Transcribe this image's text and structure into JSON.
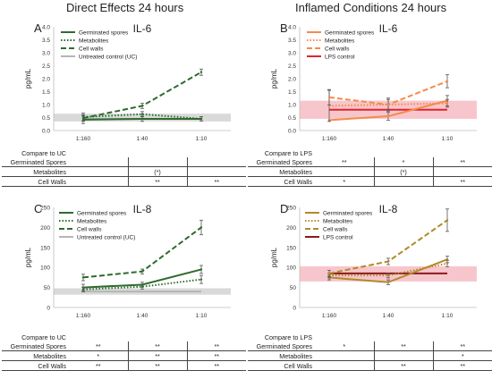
{
  "headings": {
    "left": "Direct Effects 24 hours",
    "right": "Inflamed Conditions 24 hours"
  },
  "chart_data": [
    {
      "letter": "A",
      "title": "IL-6",
      "type": "line",
      "ylabel": "pg/mL",
      "x": [
        "1:160",
        "1:40",
        "1:10"
      ],
      "ylim": [
        0,
        4.0
      ],
      "yticks": [
        "0.0",
        "0.5",
        "1.0",
        "1.5",
        "2.0",
        "2.5",
        "3.0",
        "3.5",
        "4.0"
      ],
      "band": {
        "name": "Untreated control (UC)",
        "low": 0.35,
        "high": 0.65,
        "line": 0.45,
        "color": "#d9d9d9",
        "lineColor": "#b5b5b5"
      },
      "series": [
        {
          "name": "Germinated spores",
          "values": [
            0.42,
            0.45,
            0.45
          ],
          "err": [
            0.15,
            0.1,
            0.08
          ],
          "color": "#2e6b2e",
          "dash": "solid"
        },
        {
          "name": "Metabolites",
          "values": [
            0.52,
            0.63,
            0.45
          ],
          "err": [
            0.15,
            0.1,
            0.08
          ],
          "color": "#2e6b2e",
          "dash": "dot"
        },
        {
          "name": "Cell walls",
          "values": [
            0.48,
            0.95,
            2.25
          ],
          "err": [
            0.12,
            0.1,
            0.12
          ],
          "color": "#2e6b2e",
          "dash": "dash"
        }
      ],
      "legend": [
        "Germinated spores",
        "Metabolites",
        "Cell walls",
        "Untreated control (UC)"
      ],
      "table": {
        "header": "Compare to UC",
        "rows": [
          {
            "label": "Germinated Spores",
            "cells": [
              "",
              "",
              ""
            ]
          },
          {
            "label": "Metabolites",
            "cells": [
              "",
              "(*)",
              ""
            ]
          },
          {
            "label": "Cell Walls",
            "cells": [
              "",
              "**",
              "**"
            ]
          }
        ]
      }
    },
    {
      "letter": "B",
      "title": "IL-6",
      "type": "line",
      "ylabel": "pg/mL",
      "x": [
        "1:160",
        "1:40",
        "1:10"
      ],
      "ylim": [
        0,
        4.0
      ],
      "yticks": [
        "0.0",
        "0.5",
        "1.0",
        "1.5",
        "2.0",
        "2.5",
        "3.0",
        "3.5",
        "4.0"
      ],
      "band": {
        "name": "LPS control",
        "low": 0.45,
        "high": 1.15,
        "line": 0.8,
        "color": "#f7c6cc",
        "lineColor": "#e0242b"
      },
      "series": [
        {
          "name": "Germinated spores",
          "values": [
            0.4,
            0.55,
            1.15
          ],
          "err": [
            0.0,
            0.15,
            0.2
          ],
          "color": "#f58a4b",
          "dash": "solid"
        },
        {
          "name": "Metabolites",
          "values": [
            0.95,
            1.0,
            1.05
          ],
          "err": [
            0.6,
            0.25,
            0.15
          ],
          "color": "#f58a4b",
          "dash": "dot"
        },
        {
          "name": "Cell walls",
          "values": [
            1.28,
            1.0,
            1.9
          ],
          "err": [
            0.3,
            0.2,
            0.25
          ],
          "color": "#f58a4b",
          "dash": "dash"
        }
      ],
      "legend": [
        "Germinated spores",
        "Metabolites",
        "Cell walls",
        "LPS control"
      ],
      "table": {
        "header": "Compare to LPS",
        "rows": [
          {
            "label": "Germinated Spores",
            "cells": [
              "**",
              "*",
              "**"
            ]
          },
          {
            "label": "Metabolites",
            "cells": [
              "",
              "(*)",
              ""
            ]
          },
          {
            "label": "Cell Walls",
            "cells": [
              "*",
              "",
              "**"
            ]
          }
        ]
      }
    },
    {
      "letter": "C",
      "title": "IL-8",
      "type": "line",
      "ylabel": "pg/mL",
      "x": [
        "1:160",
        "1:40",
        "1:10"
      ],
      "ylim": [
        0,
        250
      ],
      "yticks": [
        "0",
        "50",
        "100",
        "150",
        "200",
        "250"
      ],
      "band": {
        "name": "Untreated control (UC)",
        "low": 32,
        "high": 48,
        "line": 40,
        "color": "#d9d9d9",
        "lineColor": "#b5b5b5"
      },
      "series": [
        {
          "name": "Germinated spores",
          "values": [
            50,
            57,
            95
          ],
          "err": [
            8,
            6,
            10
          ],
          "color": "#2e6b2e",
          "dash": "solid"
        },
        {
          "name": "Metabolites",
          "values": [
            45,
            52,
            70
          ],
          "err": [
            6,
            6,
            10
          ],
          "color": "#2e6b2e",
          "dash": "dot"
        },
        {
          "name": "Cell walls",
          "values": [
            75,
            90,
            200
          ],
          "err": [
            8,
            6,
            18
          ],
          "color": "#2e6b2e",
          "dash": "dash"
        }
      ],
      "legend": [
        "Germinated spores",
        "Metabolites",
        "Cell walls",
        "Untreated control (UC)"
      ],
      "table": {
        "header": "Compare to UC",
        "rows": [
          {
            "label": "Germinated Spores",
            "cells": [
              "**",
              "**",
              "**"
            ]
          },
          {
            "label": "Metabolites",
            "cells": [
              "*",
              "**",
              "**"
            ]
          },
          {
            "label": "Cell Walls",
            "cells": [
              "**",
              "**",
              "**"
            ]
          }
        ]
      }
    },
    {
      "letter": "D",
      "title": "IL-8",
      "type": "line",
      "ylabel": "pg/mL",
      "x": [
        "1:160",
        "1:40",
        "1:10"
      ],
      "ylim": [
        0,
        250
      ],
      "yticks": [
        "0",
        "50",
        "100",
        "150",
        "200",
        "250"
      ],
      "band": {
        "name": "LPS control",
        "low": 65,
        "high": 103,
        "line": 85,
        "color": "#f7c6cc",
        "lineColor": "#8b1a1a"
      },
      "series": [
        {
          "name": "Germinated spores",
          "values": [
            75,
            63,
            120
          ],
          "err": [
            6,
            6,
            8
          ],
          "color": "#b08a2c",
          "dash": "solid"
        },
        {
          "name": "Metabolites",
          "values": [
            80,
            80,
            110
          ],
          "err": [
            6,
            6,
            8
          ],
          "color": "#b08a2c",
          "dash": "dot"
        },
        {
          "name": "Cell walls",
          "values": [
            85,
            115,
            218
          ],
          "err": [
            8,
            8,
            28
          ],
          "color": "#b08a2c",
          "dash": "dash"
        }
      ],
      "legend": [
        "Germinated spores",
        "Metabolites",
        "Cell walls",
        "LPS control"
      ],
      "table": {
        "header": "Compare to LPS",
        "rows": [
          {
            "label": "Germinated Spores",
            "cells": [
              "*",
              "**",
              "**"
            ]
          },
          {
            "label": "Metabolites",
            "cells": [
              "",
              "",
              "*"
            ]
          },
          {
            "label": "Cell Walls",
            "cells": [
              "",
              "**",
              "**"
            ]
          }
        ]
      }
    }
  ]
}
